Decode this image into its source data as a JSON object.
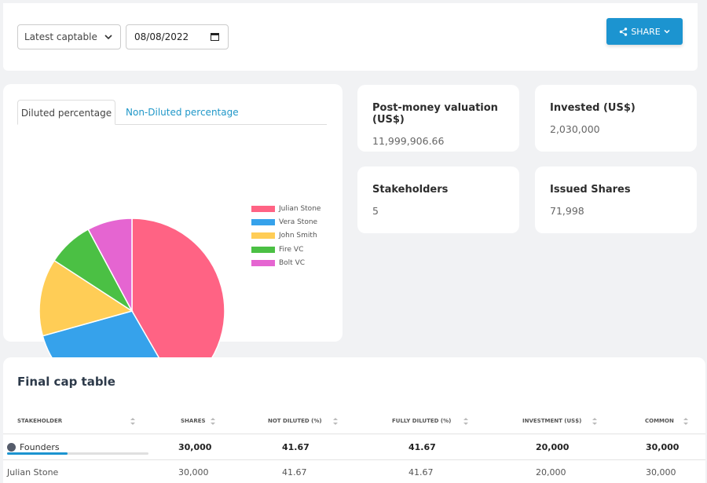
{
  "toolbar": {
    "captable_select": "Latest captable",
    "date_value": "08/08/2022",
    "share_label": "SHARE"
  },
  "chart_tabs": {
    "active": "Diluted percentage",
    "inactive": "Non-Diluted percentage"
  },
  "chart_data": {
    "type": "pie",
    "title": "",
    "categories": [
      "Julian Stone",
      "Vera Stone",
      "John Smith",
      "Fire VC",
      "Bolt VC"
    ],
    "values": [
      41.67,
      29.0,
      13.5,
      8.0,
      7.83
    ],
    "colors": [
      "#ff6384",
      "#36a2eb",
      "#ffcd56",
      "#4bc044",
      "#e565d1"
    ],
    "legend": "right"
  },
  "stats": {
    "post_money": {
      "label": "Post-money valuation (US$)",
      "value": "11,999,906.66"
    },
    "invested": {
      "label": "Invested (US$)",
      "value": "2,030,000"
    },
    "stakeholders": {
      "label": "Stakeholders",
      "value": "5"
    },
    "issued_shares": {
      "label": "Issued Shares",
      "value": "71,998"
    }
  },
  "cap_table": {
    "title": "Final cap table",
    "columns": [
      "STAKEHOLDER",
      "SHARES",
      "NOT DILUTED (%)",
      "FULLY DILUTED (%)",
      "INVESTMENT (US$)",
      "COMMON"
    ],
    "group": {
      "name": "Founders",
      "progress": 0.43,
      "shares": "30,000",
      "not_diluted": "41.67",
      "fully_diluted": "41.67",
      "investment": "20,000",
      "common": "30,000"
    },
    "row": {
      "name": "Julian Stone",
      "shares": "30,000",
      "not_diluted": "41.67",
      "fully_diluted": "41.67",
      "investment": "20,000",
      "common": "30,000"
    }
  }
}
